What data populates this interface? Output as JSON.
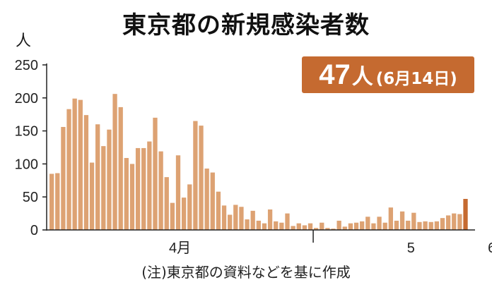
{
  "chart_data": {
    "type": "bar",
    "title": "東京都の新規感染者数",
    "unit_label": "人",
    "ylim": [
      0,
      250
    ],
    "yticks": [
      0,
      50,
      100,
      150,
      200,
      250
    ],
    "month_labels": [
      "4月",
      "5",
      "6"
    ],
    "month_boundaries_after_index": [
      0,
      46,
      80
    ],
    "values": [
      85,
      86,
      156,
      183,
      199,
      197,
      174,
      102,
      160,
      127,
      152,
      206,
      186,
      109,
      100,
      124,
      124,
      134,
      170,
      119,
      80,
      41,
      113,
      49,
      69,
      165,
      158,
      93,
      87,
      58,
      37,
      23,
      38,
      35,
      16,
      29,
      14,
      10,
      31,
      13,
      11,
      25,
      6,
      10,
      7,
      10,
      3,
      11,
      3,
      2,
      14,
      5,
      10,
      11,
      13,
      20,
      10,
      20,
      11,
      34,
      14,
      28,
      14,
      26,
      12,
      13,
      12,
      13,
      18,
      22,
      25,
      24,
      47
    ],
    "highlight_index": 72,
    "bar_color": "#dda273",
    "highlight_color": "#c56a30",
    "grid": false
  },
  "callout": {
    "value": "47",
    "unit": "人",
    "date": "(6月14日)"
  },
  "note": "(注)東京都の資料などを基に作成"
}
